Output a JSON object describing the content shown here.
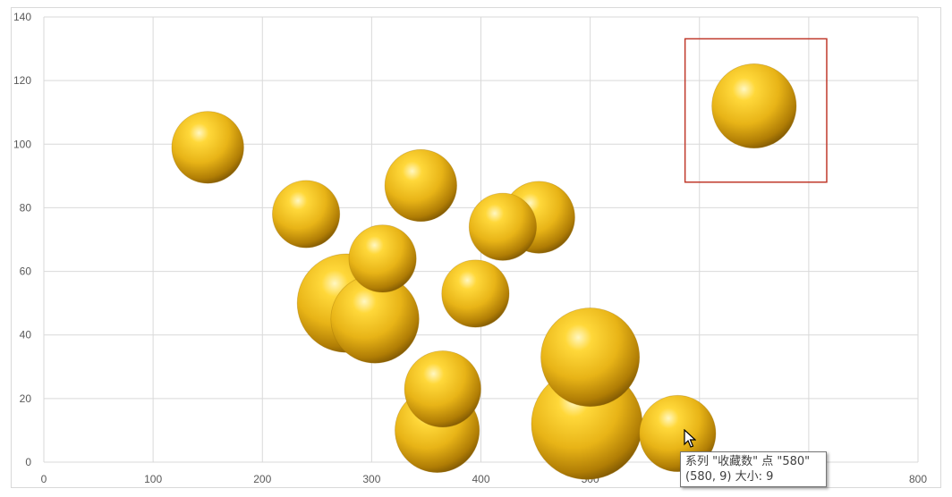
{
  "chart_data": {
    "type": "bubble",
    "title": "",
    "xlabel": "",
    "ylabel": "",
    "xlim": [
      0,
      800
    ],
    "ylim": [
      0,
      140
    ],
    "x_ticks": [
      0,
      100,
      200,
      300,
      400,
      500,
      600,
      700,
      800
    ],
    "y_ticks": [
      0,
      20,
      40,
      60,
      80,
      100,
      120,
      140
    ],
    "grid": true,
    "bubble_color": "#e8b417",
    "highlight_box_color": "#c0392b",
    "points": [
      {
        "x": 150,
        "y": 99,
        "size": 8
      },
      {
        "x": 240,
        "y": 78,
        "size": 7
      },
      {
        "x": 345,
        "y": 87,
        "size": 8
      },
      {
        "x": 420,
        "y": 74,
        "size": 7
      },
      {
        "x": 453,
        "y": 77,
        "size": 8
      },
      {
        "x": 310,
        "y": 64,
        "size": 7
      },
      {
        "x": 277,
        "y": 50,
        "size": 15
      },
      {
        "x": 303,
        "y": 45,
        "size": 12
      },
      {
        "x": 395,
        "y": 53,
        "size": 7
      },
      {
        "x": 365,
        "y": 23,
        "size": 9
      },
      {
        "x": 360,
        "y": 10,
        "size": 11
      },
      {
        "x": 500,
        "y": 33,
        "size": 15
      },
      {
        "x": 497,
        "y": 12,
        "size": 19
      },
      {
        "x": 580,
        "y": 9,
        "size": 9
      },
      {
        "x": 650,
        "y": 112,
        "size": 11
      }
    ],
    "highlighted_point_index": 14
  },
  "tooltip": {
    "line1": "系列 \"收藏数\" 点 \"580\"",
    "line2": "(580, 9) 大小: 9"
  }
}
